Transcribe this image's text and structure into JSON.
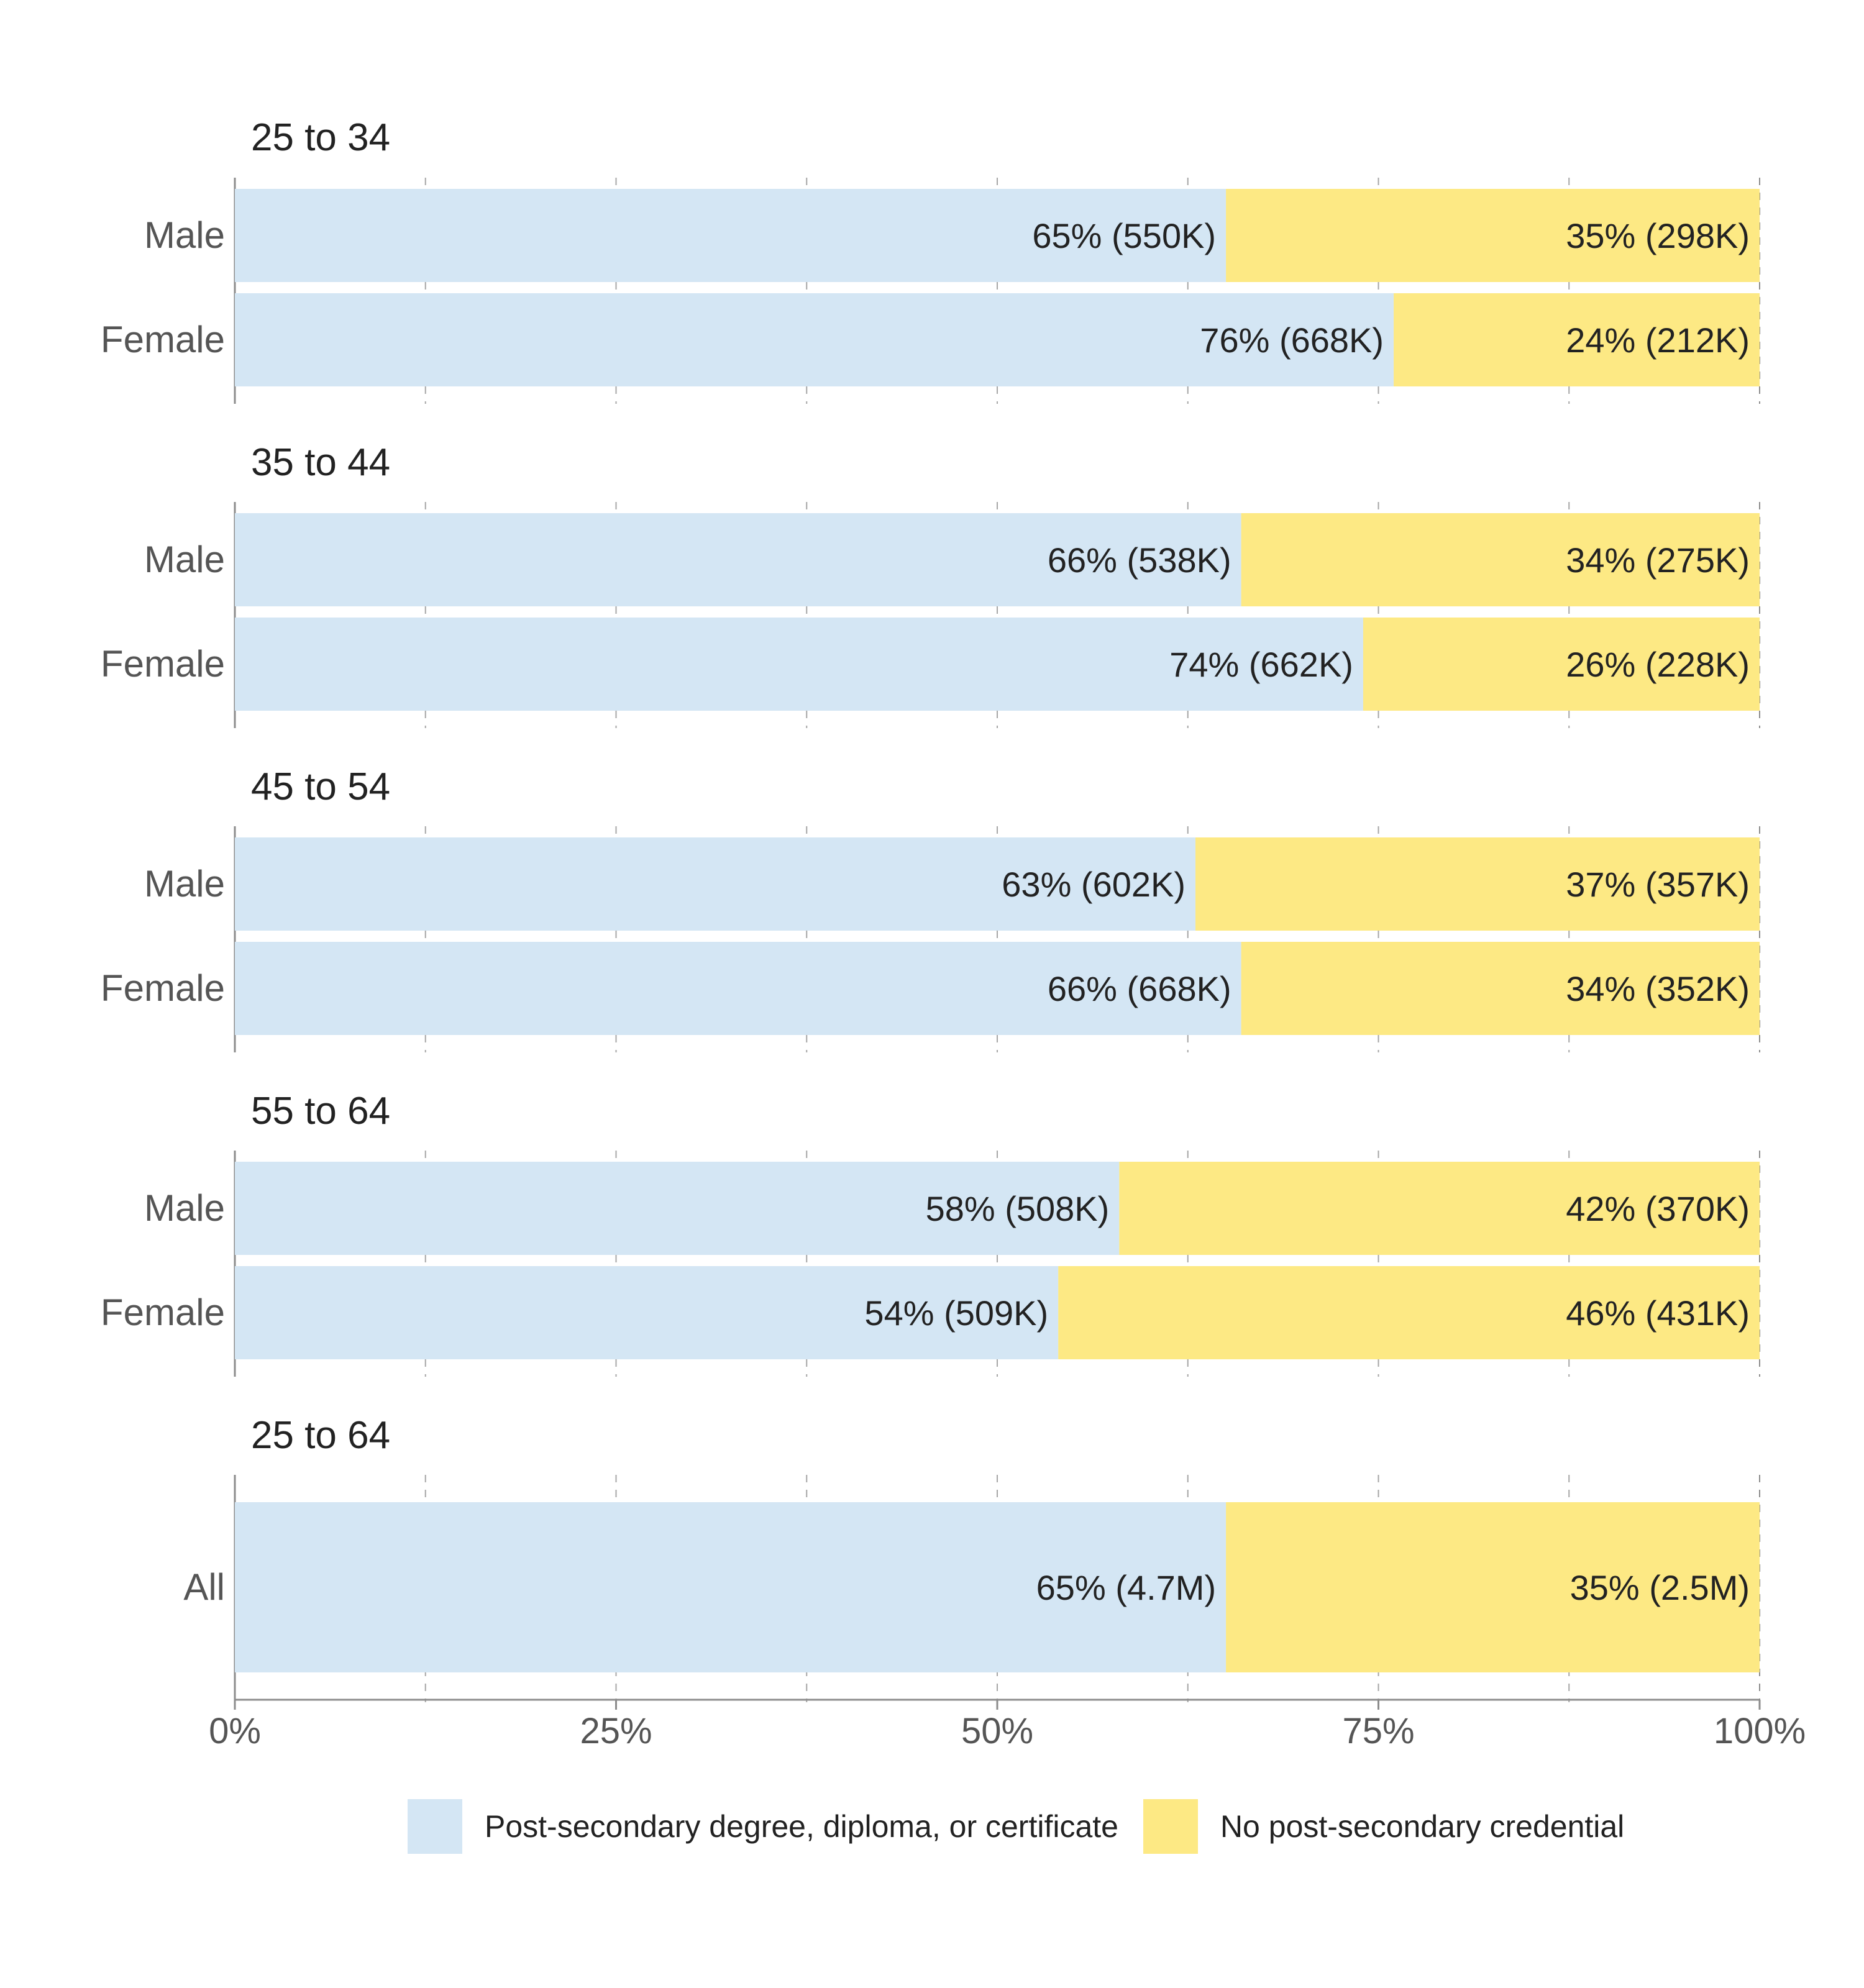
{
  "chart_data": {
    "type": "bar",
    "orientation": "horizontal",
    "stacked": true,
    "normalized_percent": true,
    "xlim": [
      0,
      100
    ],
    "x_ticks": [
      "0%",
      "25%",
      "50%",
      "75%",
      "100%"
    ],
    "grid": "dashed vertical at every 12.5%",
    "legend_position": "bottom-center",
    "colors": {
      "post_secondary": "#d4e6f4",
      "no_credential": "#fde984",
      "axis": "#8c8c8c",
      "text": "#222222",
      "label": "#555555"
    },
    "series": [
      {
        "name": "Post-secondary degree, diploma, or certificate",
        "color": "#d4e6f4"
      },
      {
        "name": "No post-secondary credential",
        "color": "#fde984"
      }
    ],
    "groups": [
      {
        "title": "25 to 34",
        "rows": [
          {
            "category": "Male",
            "values": [
              65,
              35
            ],
            "labels": [
              "65% (550K)",
              "35% (298K)"
            ]
          },
          {
            "category": "Female",
            "values": [
              76,
              24
            ],
            "labels": [
              "76% (668K)",
              "24% (212K)"
            ]
          }
        ]
      },
      {
        "title": "35 to 44",
        "rows": [
          {
            "category": "Male",
            "values": [
              66,
              34
            ],
            "labels": [
              "66% (538K)",
              "34% (275K)"
            ]
          },
          {
            "category": "Female",
            "values": [
              74,
              26
            ],
            "labels": [
              "74% (662K)",
              "26% (228K)"
            ]
          }
        ]
      },
      {
        "title": "45 to 54",
        "rows": [
          {
            "category": "Male",
            "values": [
              63,
              37
            ],
            "labels": [
              "63% (602K)",
              "37% (357K)"
            ]
          },
          {
            "category": "Female",
            "values": [
              66,
              34
            ],
            "labels": [
              "66% (668K)",
              "34% (352K)"
            ]
          }
        ]
      },
      {
        "title": "55 to 64",
        "rows": [
          {
            "category": "Male",
            "values": [
              58,
              42
            ],
            "labels": [
              "58% (508K)",
              "42% (370K)"
            ]
          },
          {
            "category": "Female",
            "values": [
              54,
              46
            ],
            "labels": [
              "54% (509K)",
              "46% (431K)"
            ]
          }
        ]
      },
      {
        "title": "25 to 64",
        "rows": [
          {
            "category": "All",
            "values": [
              65,
              35
            ],
            "labels": [
              "65% (4.7M)",
              "35% (2.5M)"
            ]
          }
        ]
      }
    ]
  }
}
